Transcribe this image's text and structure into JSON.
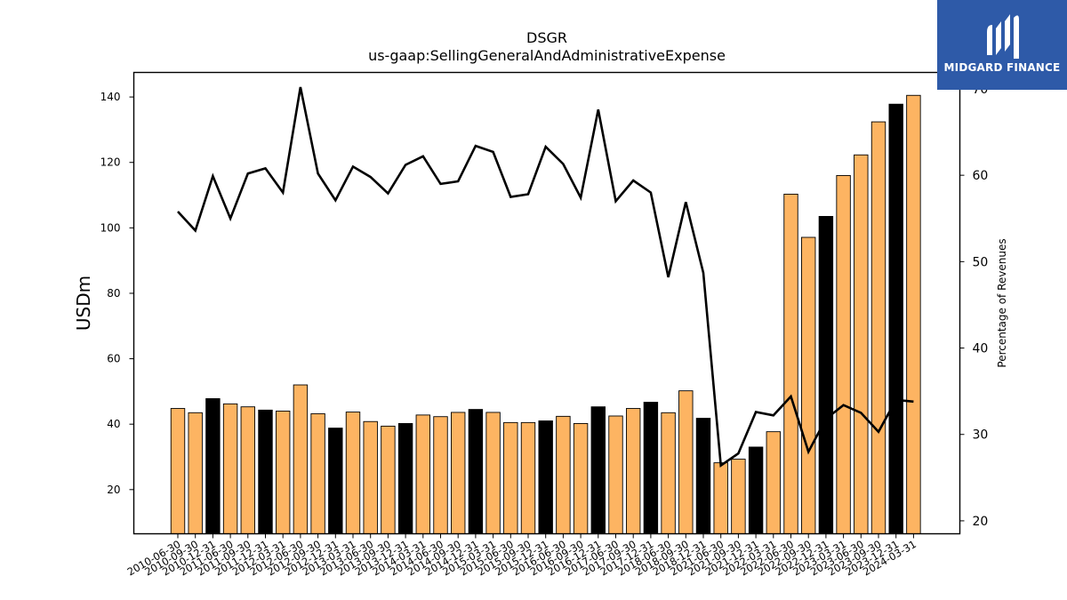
{
  "chart_data": {
    "type": "bar",
    "title": "DSGR",
    "subtitle": "us-gaap:SellingGeneralAndAdministrativeExpense",
    "ylabel": "USDm",
    "y2label": "Percentage of Revenues",
    "ylim": [
      6.5,
      147.5
    ],
    "y2lim": [
      18.5,
      71.9
    ],
    "yticks": [
      20,
      40,
      60,
      80,
      100,
      120,
      140
    ],
    "y2ticks": [
      20,
      30,
      40,
      50,
      60,
      70
    ],
    "categories": [
      "2010-06-30",
      "2010-09-30",
      "2010-12-31",
      "2011-06-30",
      "2011-09-30",
      "2011-12-31",
      "2012-03-31",
      "2012-06-30",
      "2012-09-30",
      "2012-12-31",
      "2013-03-31",
      "2013-06-30",
      "2013-09-30",
      "2013-12-31",
      "2014-03-31",
      "2014-06-30",
      "2014-09-30",
      "2014-12-31",
      "2015-03-31",
      "2015-06-30",
      "2015-09-30",
      "2015-12-31",
      "2016-06-30",
      "2016-09-30",
      "2016-12-31",
      "2017-06-30",
      "2017-09-30",
      "2017-12-31",
      "2018-06-30",
      "2018-09-30",
      "2018-12-31",
      "2021-06-30",
      "2021-09-30",
      "2021-12-31",
      "2022-03-31",
      "2022-06-30",
      "2022-09-30",
      "2022-12-31",
      "2023-03-31",
      "2023-06-30",
      "2023-09-30",
      "2023-12-31",
      "2024-03-31"
    ],
    "series": [
      {
        "type": "bar",
        "axis": "left",
        "values": [
          44.8,
          43.5,
          47.8,
          46.2,
          45.3,
          44.3,
          44.0,
          52.0,
          43.2,
          38.8,
          43.7,
          40.8,
          39.4,
          40.2,
          42.8,
          42.3,
          43.6,
          44.5,
          43.6,
          40.5,
          40.5,
          41.0,
          42.4,
          40.2,
          45.3,
          42.5,
          44.8,
          46.7,
          43.5,
          50.2,
          41.8,
          28.2,
          29.3,
          33.0,
          37.7,
          110.3,
          97.1,
          103.5,
          116.0,
          122.3,
          132.4,
          137.8,
          140.5
        ],
        "colors": [
          "#fdb462",
          "#fdb462",
          "#000000",
          "#fdb462",
          "#fdb462",
          "#000000",
          "#fdb462",
          "#fdb462",
          "#fdb462",
          "#000000",
          "#fdb462",
          "#fdb462",
          "#fdb462",
          "#000000",
          "#fdb462",
          "#fdb462",
          "#fdb462",
          "#000000",
          "#fdb462",
          "#fdb462",
          "#fdb462",
          "#000000",
          "#fdb462",
          "#fdb462",
          "#000000",
          "#fdb462",
          "#fdb462",
          "#000000",
          "#fdb462",
          "#fdb462",
          "#000000",
          "#fdb462",
          "#fdb462",
          "#000000",
          "#fdb462",
          "#fdb462",
          "#fdb462",
          "#000000",
          "#fdb462",
          "#fdb462",
          "#fdb462",
          "#000000",
          "#fdb462"
        ]
      },
      {
        "type": "line",
        "axis": "right",
        "color": "#000000",
        "values": [
          55.8,
          53.6,
          59.9,
          55.0,
          60.2,
          60.8,
          58.0,
          70.2,
          60.2,
          57.1,
          61.0,
          59.8,
          57.9,
          61.2,
          62.2,
          59.0,
          59.3,
          63.4,
          62.7,
          57.5,
          57.8,
          63.3,
          61.3,
          57.4,
          67.6,
          57.0,
          59.4,
          58.0,
          48.2,
          56.9,
          48.7,
          26.4,
          27.8,
          32.6,
          32.2,
          34.4,
          28.0,
          31.8,
          33.4,
          32.5,
          30.3,
          34.0,
          33.8
        ]
      }
    ]
  },
  "logo": {
    "text": "MIDGARD FINANCE",
    "background": "#2e5aa8"
  }
}
